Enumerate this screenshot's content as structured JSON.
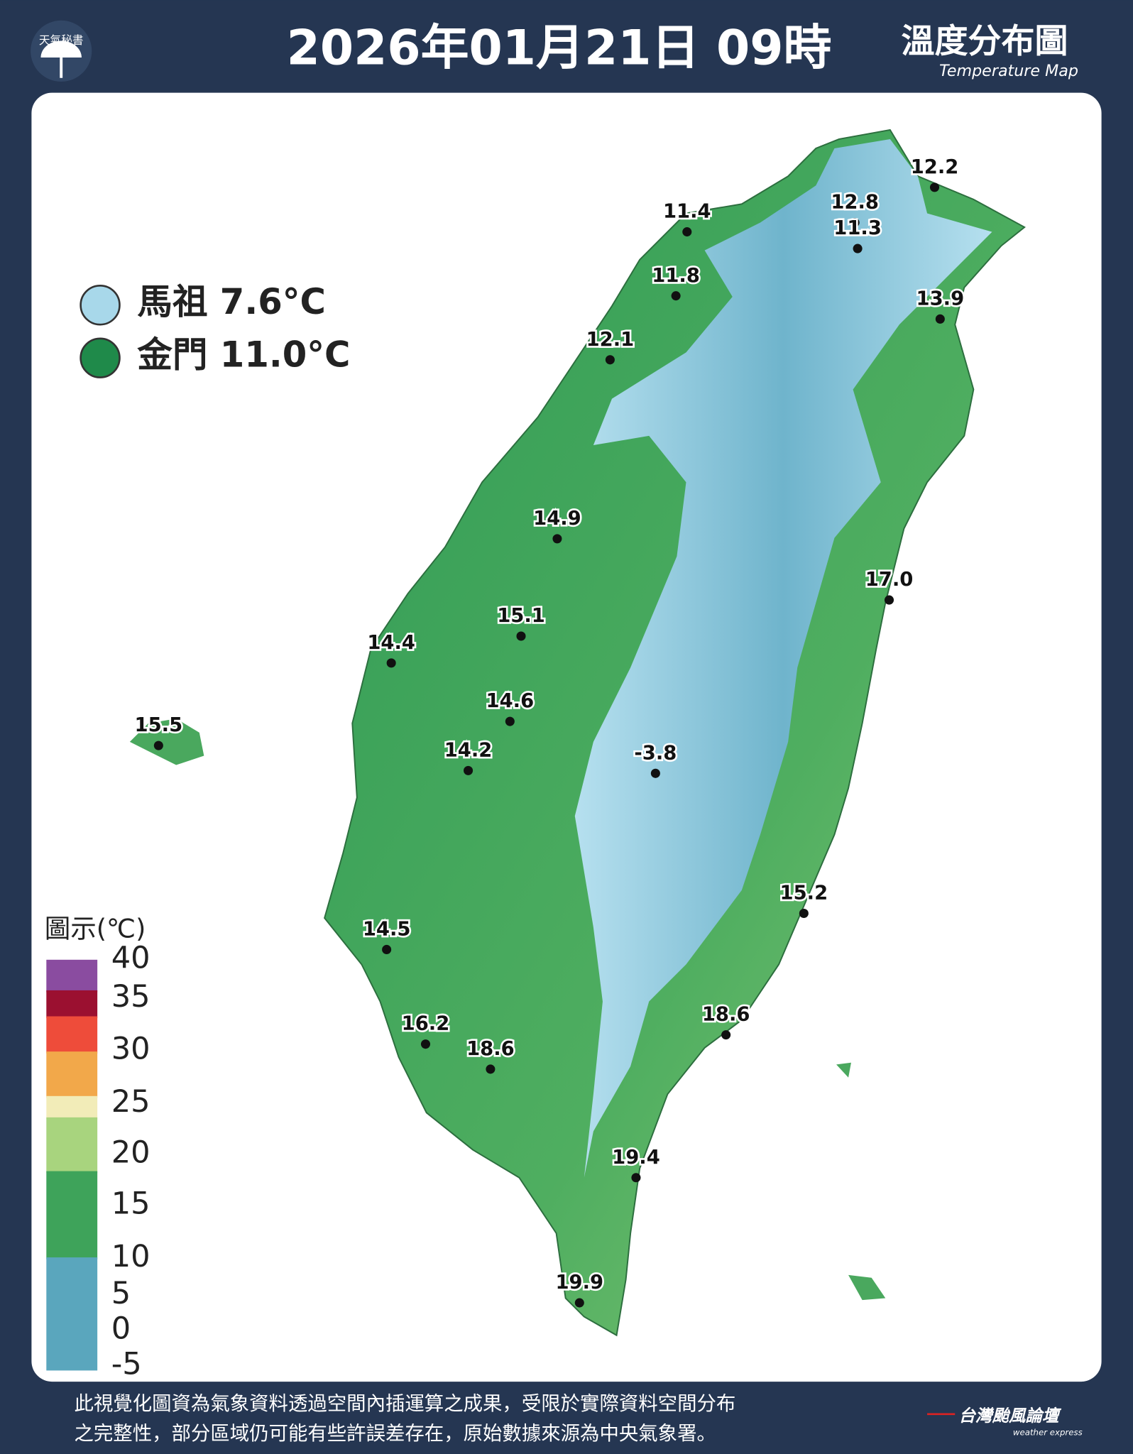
{
  "header": {
    "logo": "天氣秘書",
    "title": "2026年01月21日 09時",
    "map_title": "溫度分布圖",
    "map_subtitle": "Temperature Map"
  },
  "islands": [
    "馬祖 7.6°C",
    "金門 11.0°C"
  ],
  "stations": [
    "12.2",
    "12.8",
    "11.3",
    "11.4",
    "11.8",
    "13.9",
    "12.1",
    "14.9",
    "17.0",
    "15.1",
    "14.4",
    "14.6",
    "15.5",
    "14.2",
    "-3.8",
    "15.2",
    "14.5",
    "18.6",
    "16.2",
    "18.6",
    "19.4",
    "19.9"
  ],
  "legend": {
    "title": "圖示(℃)",
    "ticks": [
      "40",
      "35",
      "30",
      "25",
      "20",
      "15",
      "10",
      "5",
      "0",
      "-5"
    ]
  },
  "footer": {
    "lines": [
      "此視覺化圖資為氣象資料透過空間內插運算之成果，受限於實際資料空間分布",
      "之完整性，部分區域仍可能有些許誤差存在，原始數據來源為中央氣象署。"
    ],
    "brand": "台灣颱風論壇",
    "brand_sub": "weather express"
  }
}
